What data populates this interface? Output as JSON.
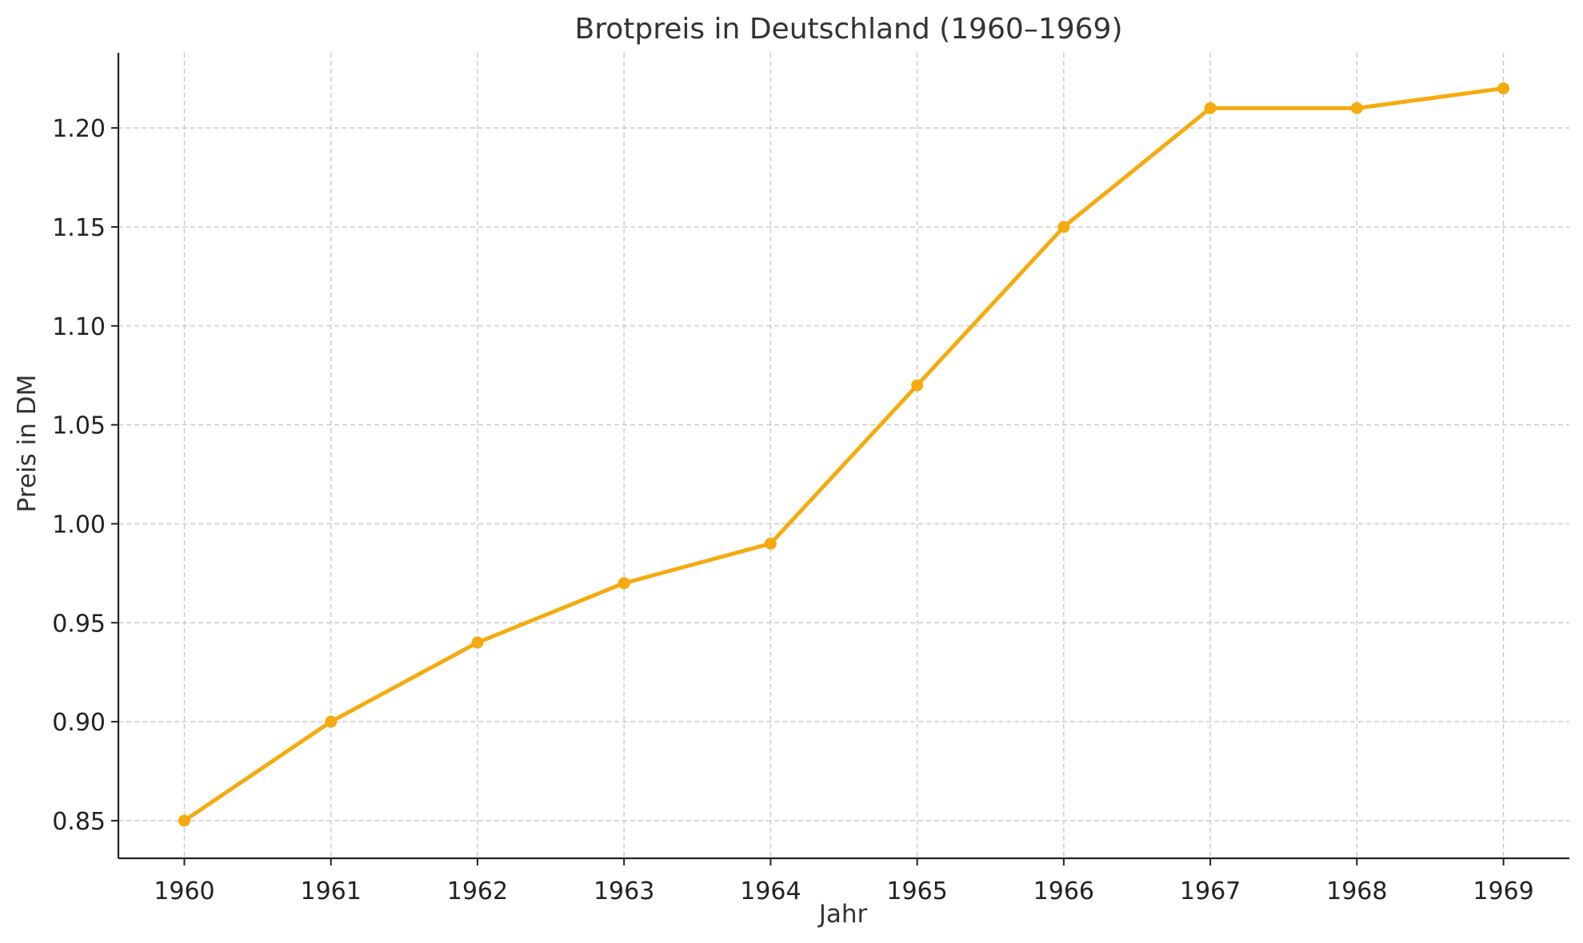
{
  "chart_data": {
    "type": "line",
    "title": "Brotpreis in Deutschland (1960–1969)",
    "xlabel": "Jahr",
    "ylabel": "Preis in DM",
    "x": [
      1960,
      1961,
      1962,
      1963,
      1964,
      1965,
      1966,
      1967,
      1968,
      1969
    ],
    "series": [
      {
        "values": [
          0.85,
          0.9,
          0.94,
          0.97,
          0.99,
          1.07,
          1.15,
          1.21,
          1.21,
          1.22
        ]
      }
    ],
    "x_ticks": [
      "1960",
      "1961",
      "1962",
      "1963",
      "1964",
      "1965",
      "1966",
      "1967",
      "1968",
      "1969"
    ],
    "y_ticks": [
      "0.85",
      "0.90",
      "0.95",
      "1.00",
      "1.05",
      "1.10",
      "1.15",
      "1.20"
    ],
    "xlim": [
      1959.55,
      1969.45
    ],
    "ylim": [
      0.831,
      1.238
    ],
    "grid": true,
    "line_color": "#f5ab0f"
  }
}
